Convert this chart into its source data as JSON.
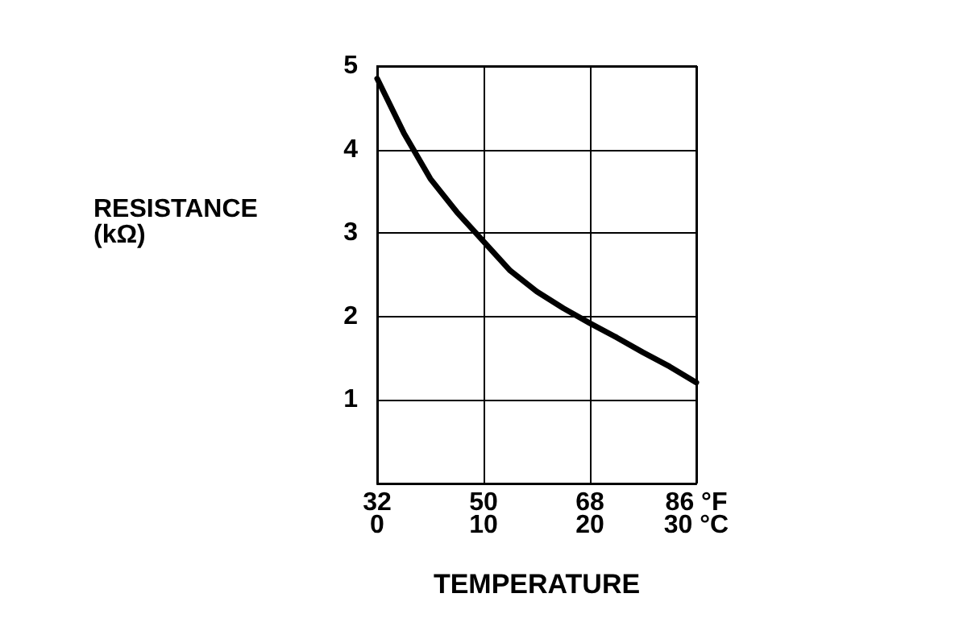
{
  "chart_data": {
    "type": "line",
    "xlabel": "TEMPERATURE",
    "ylabel": "RESISTANCE\n(kΩ)",
    "x": [
      0,
      2.5,
      5,
      7.5,
      10,
      12.5,
      15,
      17.5,
      20,
      22.5,
      25,
      27.5,
      30
    ],
    "series": [
      {
        "color": "#000000",
        "values": [
          4.85,
          4.2,
          3.65,
          3.25,
          2.9,
          2.55,
          2.3,
          2.1,
          1.92,
          1.75,
          1.57,
          1.4,
          1.21
        ]
      }
    ],
    "xlim": [
      0,
      30
    ],
    "xticks": [
      0,
      10,
      20,
      {
        "value": 30,
        "label": "30 °C"
      }
    ],
    "x2lim": [
      32,
      86
    ],
    "x2ticks": [
      32,
      50,
      68,
      {
        "value": 86,
        "label": "86 °F"
      }
    ],
    "ylim": [
      0,
      5
    ],
    "yticks": [
      {
        "value": 0,
        "label": null
      },
      1,
      2,
      3,
      4,
      5
    ],
    "grid": true,
    "marker": "none",
    "line_style": "solid"
  }
}
